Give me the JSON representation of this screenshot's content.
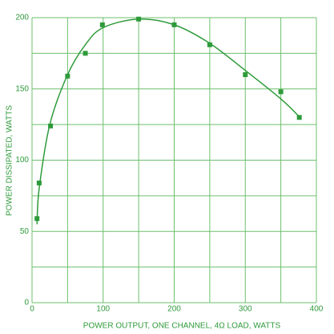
{
  "chart_data": {
    "type": "scatter",
    "xlabel": "POWER OUTPUT, ONE CHANNEL, 4Ω LOAD, WATTS",
    "ylabel": "POWER DISSIPATED, WATTS",
    "color": "#2e9a3a",
    "xlim": [
      0,
      400
    ],
    "ylim": [
      0,
      200
    ],
    "xticks": [
      0,
      100,
      200,
      300,
      400
    ],
    "yticks": [
      0,
      50,
      100,
      150,
      200
    ],
    "xminor": [
      50,
      150,
      250,
      350
    ],
    "yminor": [
      25,
      75,
      125,
      175
    ],
    "grid": true,
    "series": [
      {
        "style": "markers",
        "color": "#2e9a3a",
        "x": [
          7,
          10,
          26,
          50,
          75,
          99,
          150,
          200,
          250,
          300,
          350,
          376
        ],
        "values": [
          59,
          84,
          124,
          159,
          175,
          195,
          199,
          195,
          181,
          160,
          148,
          130
        ]
      },
      {
        "style": "line",
        "color": "#2e9a3a",
        "x": [
          7,
          10,
          25,
          50,
          75,
          100,
          150,
          200,
          250,
          300,
          350,
          375
        ],
        "values": [
          55,
          80,
          125,
          160,
          181,
          193,
          199,
          195,
          182,
          163,
          143,
          131
        ]
      }
    ]
  }
}
